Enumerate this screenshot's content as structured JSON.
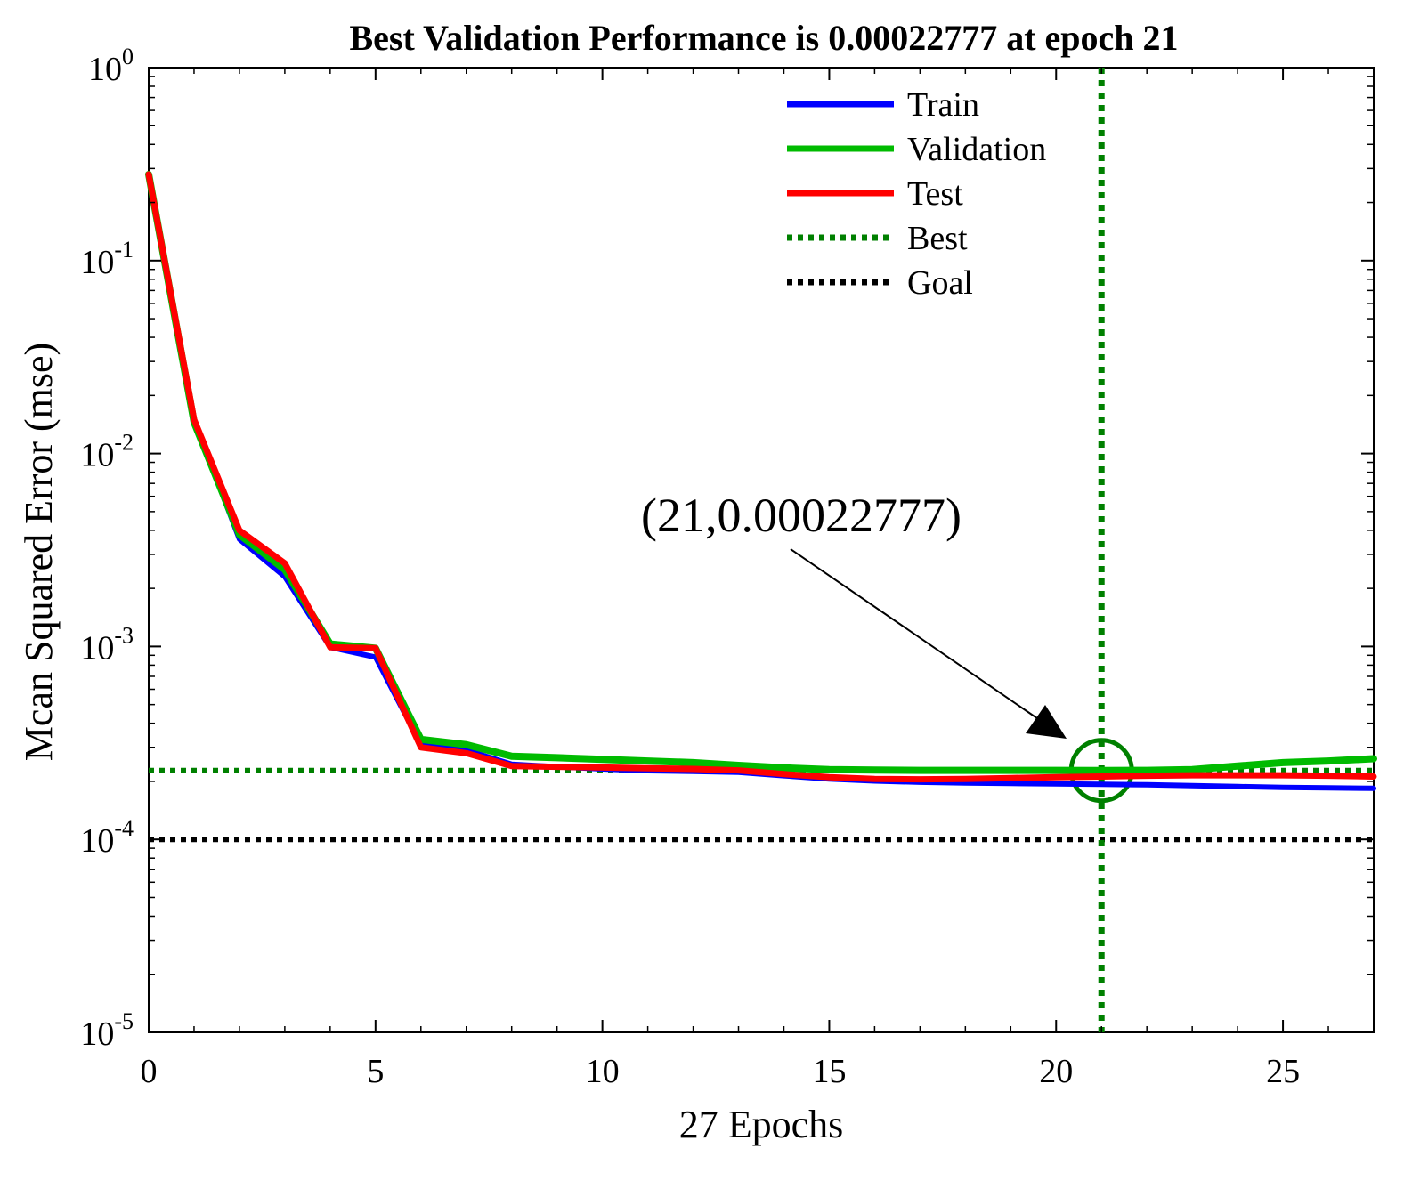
{
  "colors": {
    "train": "#0000ff",
    "validation": "#00bb00",
    "test": "#ff0000",
    "best": "#008000",
    "goal": "#000000",
    "axis": "#000000",
    "background": "#ffffff"
  },
  "chart_data": {
    "type": "line",
    "yscale": "log",
    "title": "Best Validation Performance is 0.00022777 at epoch 21",
    "xlabel": "27 Epochs",
    "ylabel": "Mcan Squared Error (mse)",
    "xlim": [
      0,
      27
    ],
    "ylim": [
      1e-05,
      1
    ],
    "xticks": [
      0,
      5,
      10,
      15,
      20,
      25
    ],
    "xtick_labels": [
      "0",
      "5",
      "10",
      "15",
      "20",
      "25"
    ],
    "yticks": [
      1e-05,
      0.0001,
      0.001,
      0.01,
      0.1,
      1
    ],
    "ytick_labels": [
      {
        "base": "10",
        "exp": "-5"
      },
      {
        "base": "10",
        "exp": "-4"
      },
      {
        "base": "10",
        "exp": "-3"
      },
      {
        "base": "10",
        "exp": "-2"
      },
      {
        "base": "10",
        "exp": "-1"
      },
      {
        "base": "10",
        "exp": "0"
      }
    ],
    "x": [
      0,
      1,
      2,
      3,
      4,
      5,
      6,
      7,
      8,
      9,
      10,
      11,
      12,
      13,
      14,
      15,
      16,
      17,
      18,
      19,
      20,
      21,
      22,
      23,
      24,
      25,
      26,
      27
    ],
    "series": [
      {
        "name": "Train",
        "key": "train",
        "values": [
          0.28,
          0.015,
          0.0036,
          0.0023,
          0.00099,
          0.00088,
          0.00031,
          0.00029,
          0.000245,
          0.000238,
          0.000232,
          0.000227,
          0.000225,
          0.000223,
          0.000214,
          0.000206,
          0.000201,
          0.000198,
          0.000196,
          0.000195,
          0.000194,
          0.000193,
          0.000192,
          0.00019,
          0.000188,
          0.000186,
          0.000185,
          0.000184
        ]
      },
      {
        "name": "Validation",
        "key": "validation",
        "values": [
          0.28,
          0.0145,
          0.0038,
          0.0025,
          0.00103,
          0.00098,
          0.00033,
          0.00031,
          0.00027,
          0.000265,
          0.00026,
          0.000255,
          0.00025,
          0.000242,
          0.000235,
          0.00023,
          0.000229,
          0.000228,
          0.000228,
          0.000228,
          0.000228,
          0.00022777,
          0.000228,
          0.00023,
          0.00024,
          0.00025,
          0.000255,
          0.000262
        ]
      },
      {
        "name": "Test",
        "key": "test",
        "values": [
          0.28,
          0.015,
          0.004,
          0.0027,
          0.00099,
          0.00098,
          0.0003,
          0.00028,
          0.00024,
          0.000238,
          0.000236,
          0.000234,
          0.000232,
          0.000228,
          0.000218,
          0.00021,
          0.000206,
          0.000205,
          0.000206,
          0.000208,
          0.00021,
          0.000212,
          0.000214,
          0.000215,
          0.000215,
          0.000215,
          0.000214,
          0.000212
        ]
      }
    ],
    "best": {
      "name": "Best",
      "epoch": 21,
      "value": 0.00022777
    },
    "goal": {
      "name": "Goal",
      "value": 0.0001
    },
    "legend": {
      "position": "top-center",
      "entries": [
        {
          "label": "Train",
          "key": "train",
          "style": "solid"
        },
        {
          "label": "Validation",
          "key": "validation",
          "style": "solid"
        },
        {
          "label": "Test",
          "key": "test",
          "style": "solid"
        },
        {
          "label": "Best",
          "key": "best",
          "style": "dotted"
        },
        {
          "label": "Goal",
          "key": "goal",
          "style": "dotted"
        }
      ]
    },
    "annotation": {
      "text": "(21,0.00022777)",
      "x": 21,
      "y": 0.00022777
    }
  }
}
